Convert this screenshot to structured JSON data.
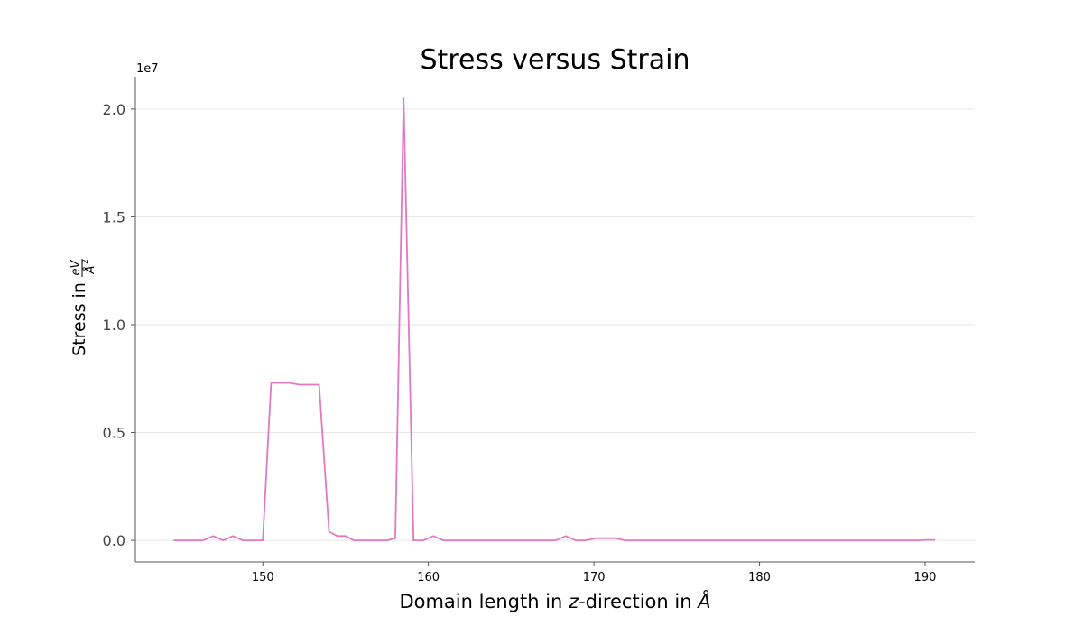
{
  "chart_data": {
    "type": "line",
    "title": "Stress versus Strain",
    "xlabel_parts": [
      "Domain length in ",
      "z",
      "-direction in ",
      "Å"
    ],
    "ylabel": "Stress in",
    "ylabel_fraction": {
      "numerator": "eV",
      "denominator": "Å",
      "denominator_exponent": "2"
    },
    "y_offset_label": "1e7",
    "xlim": [
      142.3,
      193
    ],
    "ylim": [
      -0.1,
      2.15
    ],
    "x_ticks": [
      150,
      160,
      170,
      180,
      190
    ],
    "x_tick_labels": [
      "150",
      "160",
      "170",
      "180",
      "190"
    ],
    "y_ticks": [
      0.0,
      0.5,
      1.0,
      1.5,
      2.0
    ],
    "y_tick_labels": [
      "0.0",
      "0.5",
      "1.0",
      "1.5",
      "2.0"
    ],
    "grid": "y",
    "series": [
      {
        "color": "#e377c2",
        "x": [
          144.6,
          145.5,
          146.4,
          147.0,
          147.6,
          148.2,
          148.8,
          149.4,
          150.0,
          150.5,
          151.0,
          151.6,
          152.2,
          152.8,
          153.4,
          154.0,
          154.5,
          155.0,
          155.5,
          156.0,
          156.5,
          157.0,
          157.5,
          158.0,
          158.5,
          159.1,
          159.7,
          160.3,
          160.9,
          161.5,
          162.0,
          162.7,
          163.4,
          164.0,
          164.6,
          165.2,
          165.8,
          166.4,
          167.1,
          167.7,
          168.3,
          168.9,
          169.5,
          170.1,
          170.7,
          171.3,
          171.9,
          172.5,
          173.0,
          174.0,
          175.0,
          176.0,
          177.0,
          178.0,
          179.0,
          180.0,
          181.0,
          182.0,
          183.0,
          184.0,
          185.0,
          186.0,
          187.0,
          188.0,
          189.0,
          189.6,
          190.1,
          190.6
        ],
        "y": [
          0.0,
          0.0,
          0.0,
          0.02,
          0.0,
          0.02,
          0.0,
          0.0,
          0.0,
          0.73,
          0.73,
          0.73,
          0.722,
          0.722,
          0.722,
          0.04,
          0.02,
          0.02,
          0.0,
          0.0,
          0.0,
          0.0,
          0.0,
          0.01,
          2.05,
          0.0,
          0.0,
          0.02,
          0.0,
          0.0,
          0.0,
          0.0,
          0.0,
          0.0,
          0.0,
          0.0,
          0.0,
          0.0,
          0.0,
          0.0,
          0.02,
          0.0,
          0.0,
          0.01,
          0.01,
          0.01,
          0.0,
          0.0,
          0.0,
          0.0,
          0.0,
          0.0,
          0.0,
          0.0,
          0.0,
          0.0,
          0.0,
          0.0,
          0.0,
          0.0,
          0.0,
          0.0,
          0.0,
          0.0,
          0.0,
          0.0,
          0.002,
          0.002
        ]
      }
    ]
  }
}
